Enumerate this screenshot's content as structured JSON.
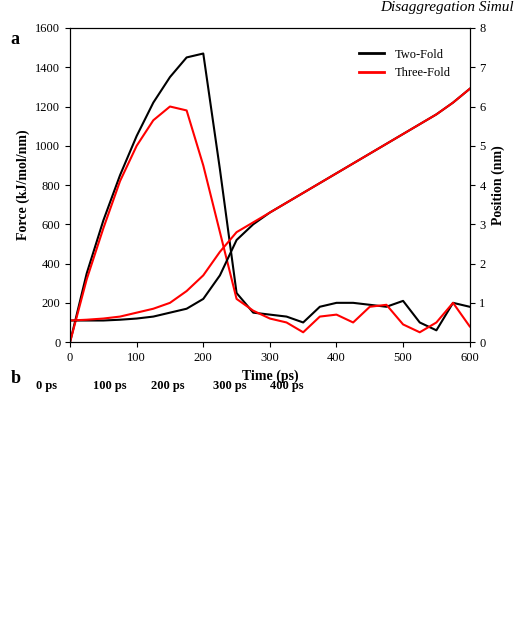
{
  "header": "Disaggregation Simul",
  "chart_data": {
    "type": "line",
    "annotations": [
      "a"
    ],
    "x_label": "Time (ps)",
    "y_label": "Force (kJ/mol/nm)",
    "y2_label": "Position (nm)",
    "x": [
      0,
      25,
      50,
      75,
      100,
      125,
      150,
      175,
      200,
      225,
      250,
      275,
      300,
      325,
      350,
      375,
      400,
      425,
      450,
      475,
      500,
      525,
      550,
      575,
      600
    ],
    "series": [
      {
        "name": "Two-Fold",
        "color": "#000000",
        "values": [
          0,
          350,
          620,
          850,
          1050,
          1220,
          1350,
          1450,
          1470,
          880,
          250,
          150,
          140,
          130,
          100,
          180,
          200,
          200,
          190,
          180,
          210,
          100,
          60,
          200,
          180
        ]
      },
      {
        "name": "Three-Fold",
        "color": "#ff0000",
        "values": [
          0,
          320,
          580,
          820,
          1000,
          1130,
          1200,
          1180,
          900,
          560,
          220,
          160,
          120,
          100,
          50,
          130,
          140,
          100,
          180,
          190,
          90,
          50,
          100,
          200,
          80
        ]
      },
      {
        "name": "Two-Fold",
        "color": "#000000",
        "axis": "y2",
        "values": [
          0.55,
          0.55,
          0.55,
          0.57,
          0.6,
          0.65,
          0.75,
          0.85,
          1.1,
          1.7,
          2.6,
          3.0,
          3.3,
          3.55,
          3.8,
          4.05,
          4.3,
          4.55,
          4.8,
          5.05,
          5.3,
          5.55,
          5.8,
          6.1,
          6.45
        ]
      },
      {
        "name": "Three-Fold",
        "color": "#ff0000",
        "axis": "y2",
        "values": [
          0.55,
          0.57,
          0.6,
          0.65,
          0.75,
          0.85,
          1.0,
          1.3,
          1.7,
          2.3,
          2.8,
          3.05,
          3.3,
          3.55,
          3.8,
          4.05,
          4.3,
          4.55,
          4.8,
          5.05,
          5.3,
          5.55,
          5.8,
          6.1,
          6.45
        ]
      }
    ],
    "xlim": [
      0,
      600
    ],
    "xticks": [
      0,
      100,
      200,
      300,
      400,
      500,
      600
    ],
    "ylim": [
      0,
      1600
    ],
    "yticks": [
      0,
      200,
      400,
      600,
      800,
      1000,
      1200,
      1400,
      1600
    ],
    "y2lim": [
      0,
      8
    ],
    "y2ticks": [
      0,
      1,
      2,
      3,
      4,
      5,
      6,
      7,
      8
    ],
    "legend": "upper right"
  },
  "panel_b": {
    "label": "b",
    "times": [
      "0 ps",
      "100 ps",
      "200 ps",
      "300 ps",
      "400 ps"
    ]
  }
}
